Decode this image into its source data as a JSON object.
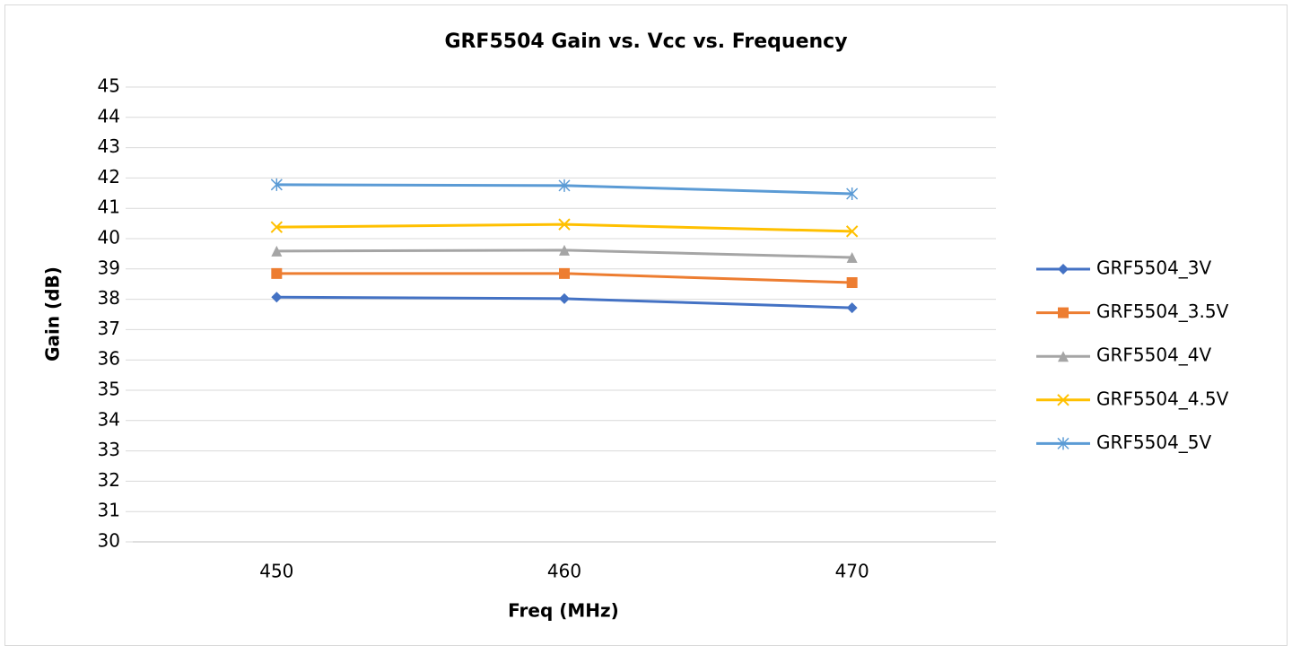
{
  "chart_data": {
    "type": "line",
    "title": "GRF5504 Gain vs. Vcc vs. Frequency",
    "xlabel": "Freq (MHz)",
    "ylabel": "Gain (dB)",
    "categories": [
      "450",
      "460",
      "470"
    ],
    "series": [
      {
        "name": "GRF5504_3V",
        "color": "#4472c4",
        "marker": "diamond",
        "values": [
          38.07,
          38.02,
          37.72
        ]
      },
      {
        "name": "GRF5504_3.5V",
        "color": "#ed7d31",
        "marker": "square",
        "values": [
          38.85,
          38.85,
          38.55
        ]
      },
      {
        "name": "GRF5504_4V",
        "color": "#a5a5a5",
        "marker": "triangle",
        "values": [
          39.59,
          39.62,
          39.38
        ]
      },
      {
        "name": "GRF5504_4.5V",
        "color": "#ffc000",
        "marker": "x",
        "values": [
          40.38,
          40.47,
          40.24
        ]
      },
      {
        "name": "GRF5504_5V",
        "color": "#5b9bd5",
        "marker": "star",
        "values": [
          41.78,
          41.75,
          41.48
        ]
      }
    ],
    "ylim": [
      30,
      45
    ],
    "yticks": [
      30,
      31,
      32,
      33,
      34,
      35,
      36,
      37,
      38,
      39,
      40,
      41,
      42,
      43,
      44,
      45
    ],
    "grid": true,
    "legend": "right"
  }
}
